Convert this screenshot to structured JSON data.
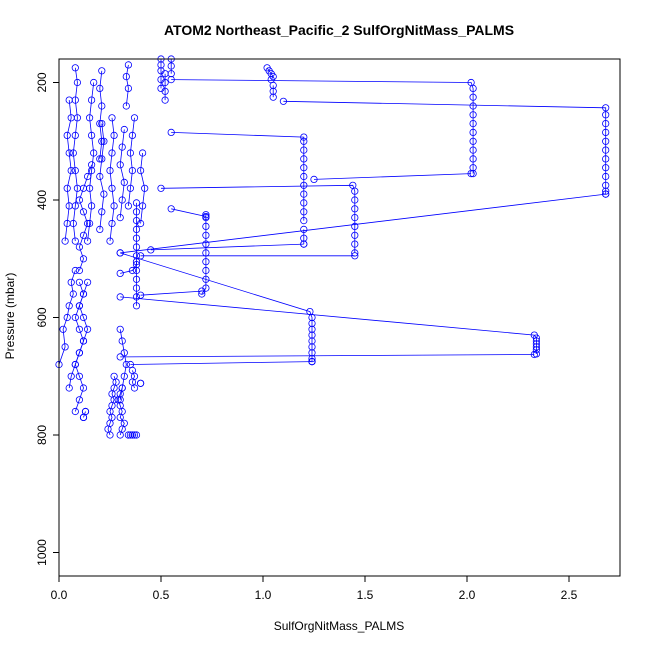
{
  "chart_data": {
    "type": "scatter",
    "title": "ATOM2 Northeast_Pacific_2 SulfOrgNitMass_PALMS",
    "xlabel": "SulfOrgNitMass_PALMS",
    "ylabel": "Pressure (mbar)",
    "xlim": [
      0,
      2.75
    ],
    "ylim": [
      1040,
      160
    ],
    "y_reversed": true,
    "x_ticks": [
      0.0,
      0.5,
      1.0,
      1.5,
      2.0,
      2.5
    ],
    "x_tick_labels": [
      "0.0",
      "0.5",
      "1.0",
      "1.5",
      "2.0",
      "2.5"
    ],
    "y_ticks": [
      200,
      400,
      600,
      800,
      1000
    ],
    "y_tick_labels": [
      "200",
      "400",
      "600",
      "800",
      "1000"
    ],
    "grid": false,
    "series_color": "#0000ff",
    "marker": "open-circle",
    "connect_points": true,
    "segments": [
      {
        "x": [
          0.0,
          0.03,
          0.02,
          0.04,
          0.05,
          0.07,
          0.06,
          0.08
        ],
        "y": [
          680,
          650,
          620,
          600,
          580,
          560,
          540,
          520
        ]
      },
      {
        "x": [
          0.05,
          0.06,
          0.08,
          0.1,
          0.12,
          0.1,
          0.08,
          0.1,
          0.12,
          0.1
        ],
        "y": [
          720,
          700,
          680,
          660,
          640,
          620,
          600,
          580,
          560,
          540
        ]
      },
      {
        "x": [
          0.08,
          0.1,
          0.12,
          0.1,
          0.08,
          0.1,
          0.12,
          0.14,
          0.12,
          0.1,
          0.12,
          0.14
        ],
        "y": [
          760,
          740,
          720,
          700,
          680,
          660,
          640,
          620,
          600,
          580,
          560,
          540
        ]
      },
      {
        "x": [
          0.1,
          0.12,
          0.1,
          0.12,
          0.14,
          0.12,
          0.1,
          0.12,
          0.14,
          0.16
        ],
        "y": [
          520,
          500,
          480,
          460,
          440,
          420,
          400,
          380,
          360,
          340
        ]
      },
      {
        "x": [
          0.03,
          0.04,
          0.05,
          0.04,
          0.06,
          0.05,
          0.04,
          0.06,
          0.05
        ],
        "y": [
          470,
          440,
          410,
          380,
          350,
          320,
          290,
          260,
          230
        ]
      },
      {
        "x": [
          0.08,
          0.07,
          0.08,
          0.09,
          0.08,
          0.07,
          0.08,
          0.09,
          0.08,
          0.09,
          0.08
        ],
        "y": [
          470,
          440,
          410,
          380,
          350,
          320,
          290,
          260,
          230,
          200,
          175
        ]
      },
      {
        "x": [
          0.14,
          0.15,
          0.16,
          0.15,
          0.16,
          0.17,
          0.16,
          0.15,
          0.16,
          0.17
        ],
        "y": [
          470,
          440,
          410,
          380,
          350,
          320,
          290,
          260,
          230,
          200
        ]
      },
      {
        "x": [
          0.2,
          0.21,
          0.22,
          0.2,
          0.21,
          0.22,
          0.21
        ],
        "y": [
          450,
          420,
          390,
          360,
          330,
          300,
          270
        ]
      },
      {
        "x": [
          0.25,
          0.26,
          0.27,
          0.26,
          0.25,
          0.26,
          0.27,
          0.26
        ],
        "y": [
          470,
          440,
          410,
          380,
          350,
          320,
          290,
          260
        ]
      },
      {
        "x": [
          0.3,
          0.31,
          0.32,
          0.3,
          0.31,
          0.32
        ],
        "y": [
          430,
          400,
          370,
          340,
          310,
          280
        ]
      },
      {
        "x": [
          0.34,
          0.35,
          0.36,
          0.35,
          0.36,
          0.37
        ],
        "y": [
          410,
          380,
          350,
          320,
          290,
          260
        ]
      },
      {
        "x": [
          0.4,
          0.41,
          0.42,
          0.4,
          0.41
        ],
        "y": [
          440,
          410,
          380,
          350,
          320
        ]
      },
      {
        "x": [
          0.2,
          0.21,
          0.2,
          0.21,
          0.2,
          0.21
        ],
        "y": [
          330,
          300,
          270,
          240,
          210,
          180
        ]
      },
      {
        "x": [
          0.33,
          0.34,
          0.33,
          0.34
        ],
        "y": [
          240,
          210,
          190,
          170
        ]
      },
      {
        "x": [
          0.5,
          0.5,
          0.5,
          0.5,
          0.5
        ],
        "y": [
          210,
          195,
          180,
          170,
          160
        ]
      },
      {
        "x": [
          0.52,
          0.52,
          0.52,
          0.52
        ],
        "y": [
          230,
          215,
          200,
          185
        ]
      },
      {
        "x": [
          0.55,
          0.55,
          0.55
        ],
        "y": [
          185,
          172,
          160
        ]
      },
      {
        "x": [
          0.25,
          0.24,
          0.25,
          0.26,
          0.25,
          0.26,
          0.27,
          0.26,
          0.27,
          0.28,
          0.27
        ],
        "y": [
          800,
          790,
          780,
          770,
          760,
          750,
          740,
          730,
          720,
          710,
          700
        ]
      },
      {
        "x": [
          0.3,
          0.31,
          0.32,
          0.3,
          0.31,
          0.3,
          0.29,
          0.3,
          0.31
        ],
        "y": [
          800,
          790,
          780,
          770,
          760,
          750,
          740,
          730,
          720
        ]
      },
      {
        "x": [
          0.34,
          0.35,
          0.36,
          0.37,
          0.38
        ],
        "y": [
          800,
          800,
          800,
          800,
          800
        ]
      },
      {
        "x": [
          0.12,
          0.13,
          0.12,
          0.13
        ],
        "y": [
          770,
          760,
          770,
          760
        ]
      },
      {
        "x": [
          0.3,
          0.31,
          0.32,
          0.33,
          0.32,
          0.31,
          0.3
        ],
        "y": [
          620,
          640,
          660,
          680,
          700,
          720,
          740
        ]
      },
      {
        "x": [
          0.36,
          0.37,
          0.36,
          0.37
        ],
        "y": [
          690,
          700,
          710,
          720
        ]
      },
      {
        "x": [
          0.4,
          0.4
        ],
        "y": [
          712,
          712
        ]
      },
      {
        "x": [
          0.7,
          0.72,
          0.72,
          0.72,
          0.72,
          0.72,
          0.72,
          0.72,
          0.72,
          0.72,
          0.72
        ],
        "y": [
          560,
          550,
          535,
          520,
          505,
          490,
          475,
          460,
          445,
          430,
          425
        ]
      },
      {
        "x": [
          0.3,
          0.36,
          0.38,
          0.38,
          0.38,
          0.38,
          0.38,
          0.38,
          0.38,
          0.38
        ],
        "y": [
          525,
          520,
          510,
          495,
          480,
          465,
          450,
          435,
          420,
          405
        ]
      },
      {
        "x": [
          0.38,
          0.38,
          0.38,
          0.38,
          0.38,
          0.38
        ],
        "y": [
          580,
          565,
          550,
          535,
          520,
          505
        ]
      },
      {
        "x": [
          1.02,
          1.03,
          1.04,
          1.05,
          1.04
        ],
        "y": [
          175,
          180,
          185,
          190,
          195
        ]
      },
      {
        "x": [
          1.05,
          1.05,
          1.05
        ],
        "y": [
          205,
          215,
          225
        ]
      },
      {
        "x": [
          0.55,
          1.2,
          1.2,
          1.2,
          1.2,
          1.2,
          1.2,
          1.2,
          1.2,
          1.2,
          1.2,
          1.2
        ],
        "y": [
          285,
          293,
          300,
          315,
          330,
          345,
          360,
          375,
          390,
          405,
          420,
          435
        ]
      },
      {
        "x": [
          1.2,
          1.2,
          1.2
        ],
        "y": [
          450,
          465,
          475
        ]
      },
      {
        "x": [
          0.45,
          1.2
        ],
        "y": [
          485,
          475
        ]
      },
      {
        "x": [
          0.5,
          1.44,
          1.45,
          1.45,
          1.45,
          1.45,
          1.45,
          1.45,
          1.45,
          1.45
        ],
        "y": [
          380,
          375,
          385,
          400,
          415,
          430,
          445,
          460,
          475,
          490
        ]
      },
      {
        "x": [
          0.4,
          1.45
        ],
        "y": [
          495,
          495
        ]
      },
      {
        "x": [
          0.55,
          2.02,
          2.03,
          2.03,
          2.03,
          2.03,
          2.03,
          2.03,
          2.03,
          2.03,
          2.03,
          2.03,
          2.03
        ],
        "y": [
          195,
          200,
          210,
          225,
          240,
          255,
          270,
          285,
          300,
          315,
          330,
          345,
          355
        ]
      },
      {
        "x": [
          1.25,
          2.02
        ],
        "y": [
          365,
          355
        ]
      },
      {
        "x": [
          1.1,
          2.68,
          2.68,
          2.68,
          2.68,
          2.68,
          2.68,
          2.68,
          2.68,
          2.68,
          2.68,
          2.68,
          2.68
        ],
        "y": [
          232,
          243,
          255,
          270,
          285,
          300,
          315,
          330,
          345,
          360,
          375,
          385,
          390
        ]
      },
      {
        "x": [
          0.3,
          2.68
        ],
        "y": [
          490,
          390
        ]
      },
      {
        "x": [
          0.3,
          1.23,
          1.24,
          1.24,
          1.24,
          1.24,
          1.24,
          1.24,
          1.24,
          1.24,
          1.24,
          1.24
        ],
        "y": [
          490,
          590,
          600,
          610,
          620,
          630,
          640,
          650,
          660,
          670,
          675,
          675
        ]
      },
      {
        "x": [
          0.35,
          1.24
        ],
        "y": [
          680,
          675
        ]
      },
      {
        "x": [
          0.3,
          2.33,
          2.34,
          2.34,
          2.34,
          2.34,
          2.34,
          2.34
        ],
        "y": [
          565,
          630,
          635,
          640,
          645,
          650,
          655,
          662
        ]
      },
      {
        "x": [
          0.3,
          2.33
        ],
        "y": [
          667,
          663
        ]
      },
      {
        "x": [
          0.55,
          0.72
        ],
        "y": [
          415,
          428
        ]
      },
      {
        "x": [
          0.4,
          0.7
        ],
        "y": [
          562,
          555
        ]
      }
    ]
  }
}
